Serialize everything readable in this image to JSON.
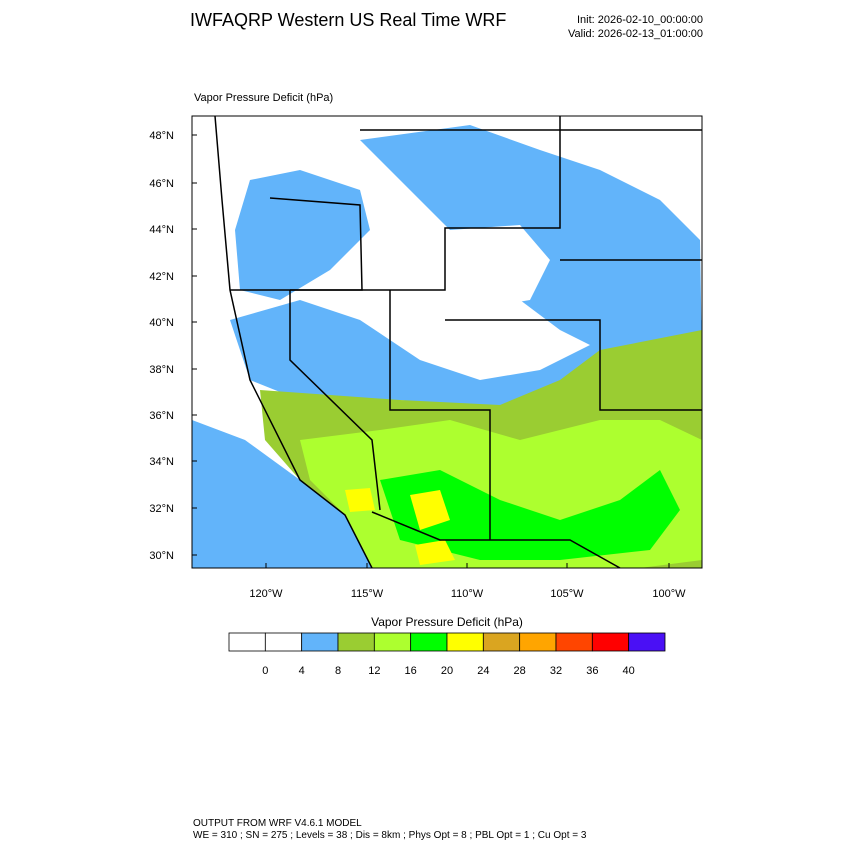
{
  "header": {
    "title": "IWFAQRP Western US Real Time WRF",
    "init": "Init: 2026-02-10_00:00:00",
    "valid": "Valid: 2026-02-13_01:00:00"
  },
  "map": {
    "label": "Vapor Pressure Deficit   (hPa)",
    "lat_labels": [
      "48°N",
      "46°N",
      "44°N",
      "42°N",
      "40°N",
      "38°N",
      "36°N",
      "34°N",
      "32°N",
      "30°N"
    ],
    "lon_labels": [
      "120°W",
      "115°W",
      "110°W",
      "105°W",
      "100°W"
    ]
  },
  "colorbar": {
    "title": "Vapor Pressure Deficit  (hPa)",
    "colors": [
      "#ffffff",
      "#ffffff",
      "#62b4fa",
      "#9acd32",
      "#adff2f",
      "#00ff00",
      "#ffff00",
      "#daa520",
      "#ffa500",
      "#ff4500",
      "#ff0000",
      "#4a10f5"
    ],
    "labels": [
      "0",
      "4",
      "8",
      "12",
      "16",
      "20",
      "24",
      "28",
      "32",
      "36",
      "40"
    ]
  },
  "footer": {
    "line1": "OUTPUT FROM WRF V4.6.1 MODEL",
    "line2": "WE = 310 ; SN = 275 ; Levels = 38 ; Dis = 8km ; Phys Opt = 8 ; PBL Opt = 1 ; Cu Opt = 3"
  }
}
